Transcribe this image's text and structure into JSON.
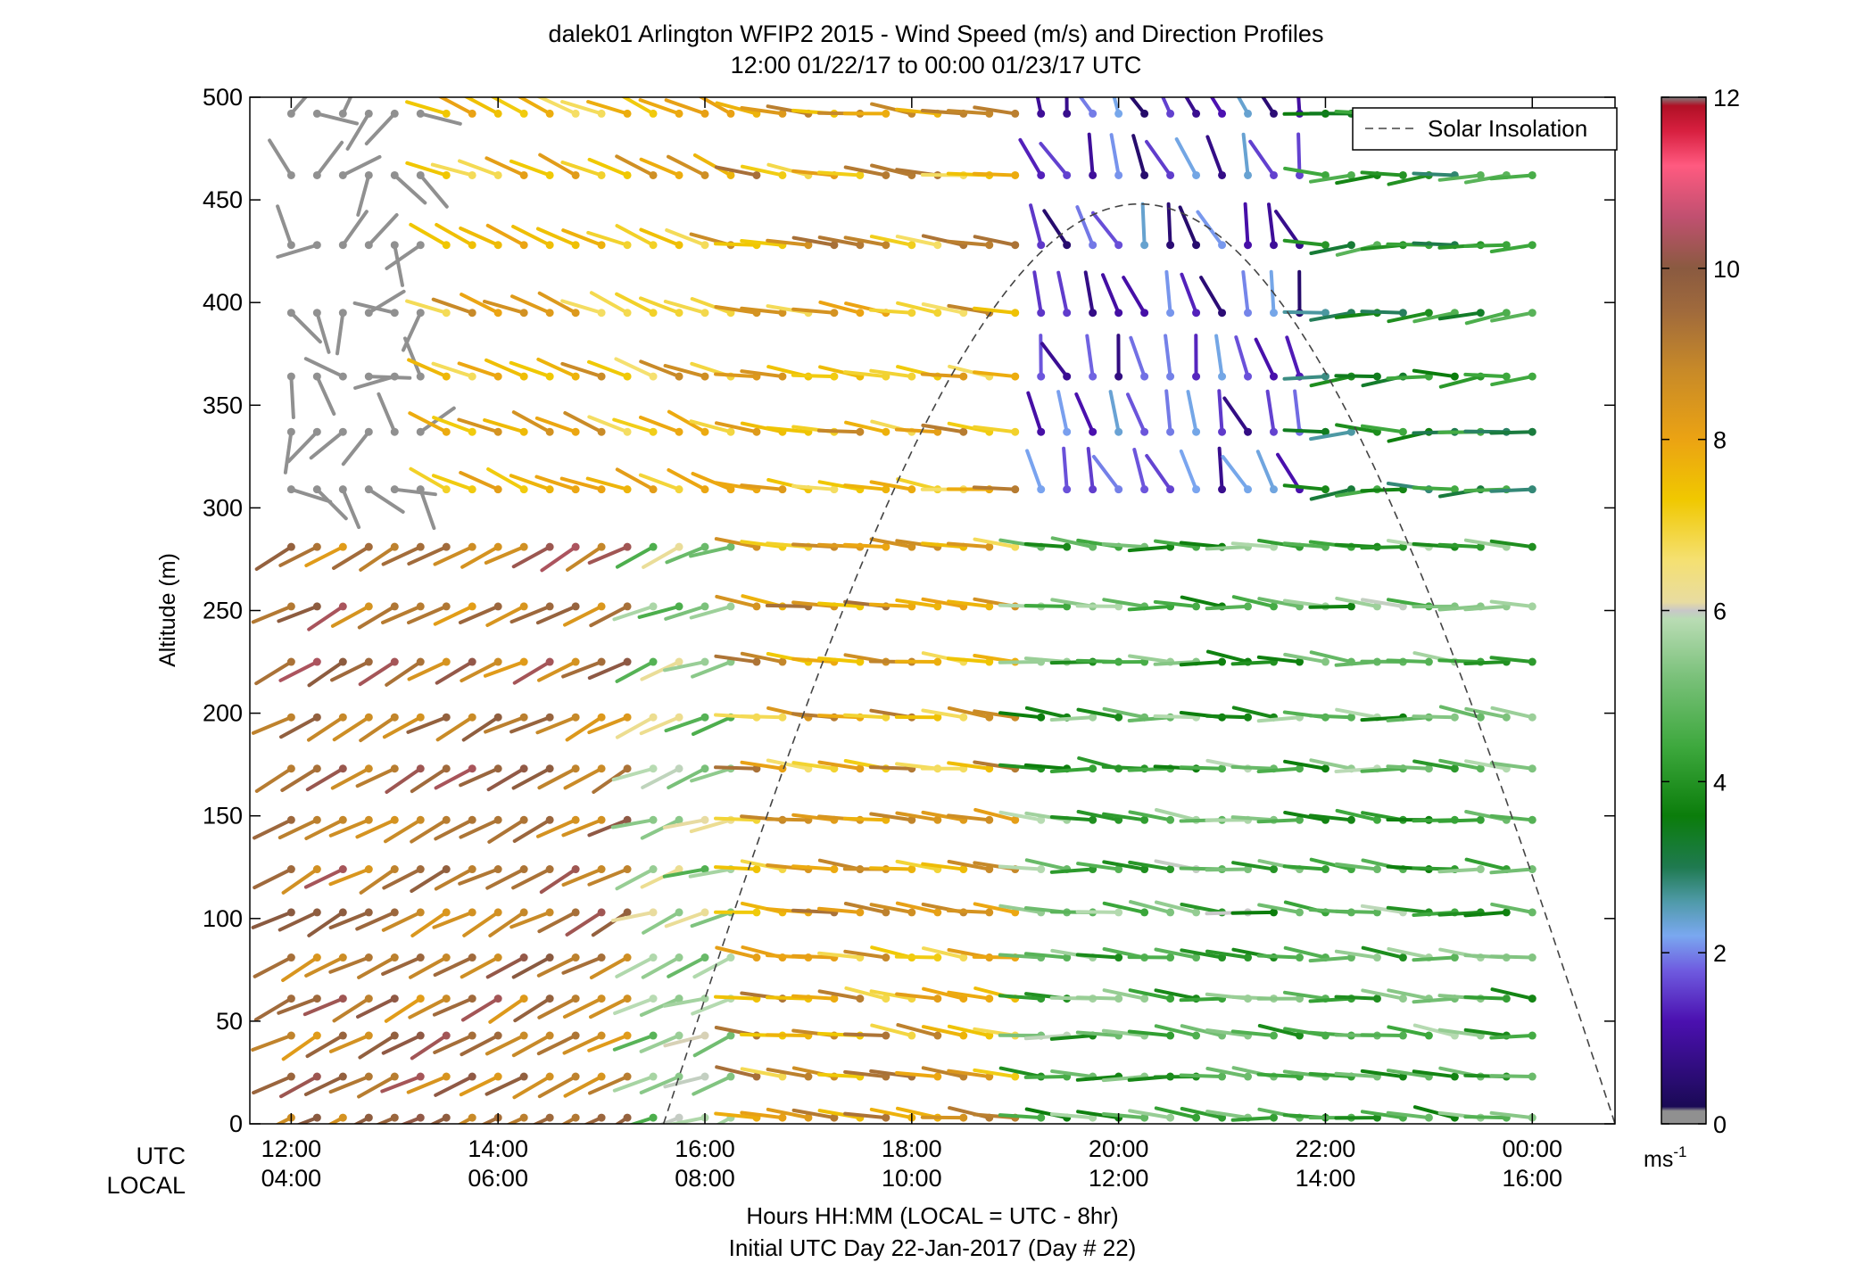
{
  "chart_data": {
    "type": "wind-barb-profile",
    "title": "dalek01 Arlington WFIP2 2015 - Wind Speed (m/s) and Direction Profiles",
    "subtitle": "12:00 01/22/17 to 00:00 01/23/17  UTC",
    "ylabel": "Altitude (m)",
    "xlabel": "Hours HH:MM  (LOCAL = UTC - 8hr)",
    "xlabel2": "Initial UTC Day 22-Jan-2017 (Day # 22)",
    "row_labels": {
      "utc": "UTC",
      "local": "LOCAL"
    },
    "xlim_hours_utc": [
      11.6,
      24.8
    ],
    "ylim": [
      0,
      500
    ],
    "yticks": [
      0,
      50,
      100,
      150,
      200,
      250,
      300,
      350,
      400,
      450,
      500
    ],
    "xticks_hours": [
      12,
      14,
      16,
      18,
      20,
      22,
      24
    ],
    "xtick_labels_utc": [
      "12:00",
      "14:00",
      "16:00",
      "18:00",
      "20:00",
      "22:00",
      "00:00"
    ],
    "xtick_labels_local": [
      "04:00",
      "06:00",
      "08:00",
      "10:00",
      "12:00",
      "14:00",
      "16:00"
    ],
    "legend": {
      "label": "Solar Insolation",
      "placement": "top-right"
    },
    "colorbar": {
      "unit_base": "ms",
      "unit_exp": "-1",
      "ticks": [
        0,
        2,
        4,
        6,
        8,
        10,
        12
      ],
      "range": [
        0,
        12
      ],
      "stops": [
        {
          "v": 0.0,
          "c": "#909090"
        },
        {
          "v": 0.15,
          "c": "#909090"
        },
        {
          "v": 0.2,
          "c": "#1a0a55"
        },
        {
          "v": 1.2,
          "c": "#4b10b0"
        },
        {
          "v": 1.8,
          "c": "#6f5ce0"
        },
        {
          "v": 2.2,
          "c": "#7aa8f0"
        },
        {
          "v": 2.6,
          "c": "#4f9aa8"
        },
        {
          "v": 3.0,
          "c": "#1f7a50"
        },
        {
          "v": 3.6,
          "c": "#0b7d0b"
        },
        {
          "v": 4.4,
          "c": "#3da83d"
        },
        {
          "v": 5.2,
          "c": "#78c078"
        },
        {
          "v": 5.9,
          "c": "#b9dcb4"
        },
        {
          "v": 6.0,
          "c": "#c8c8c8"
        },
        {
          "v": 6.1,
          "c": "#e8dca0"
        },
        {
          "v": 6.6,
          "c": "#f5e070"
        },
        {
          "v": 7.3,
          "c": "#f0c800"
        },
        {
          "v": 8.0,
          "c": "#eba313"
        },
        {
          "v": 8.8,
          "c": "#c88a28"
        },
        {
          "v": 9.5,
          "c": "#a06a3c"
        },
        {
          "v": 10.0,
          "c": "#8a5a40"
        },
        {
          "v": 10.6,
          "c": "#c05070"
        },
        {
          "v": 11.2,
          "c": "#ff5a80"
        },
        {
          "v": 11.6,
          "c": "#d82040"
        },
        {
          "v": 11.9,
          "c": "#b01025"
        },
        {
          "v": 12.0,
          "c": "#808080"
        }
      ]
    },
    "insolation_curve": {
      "start_hour": 15.6,
      "end_hour": 24.8,
      "peak_altitude_m": 448
    },
    "altitudes": [
      3,
      23,
      43,
      61,
      81,
      103,
      124,
      148,
      173,
      198,
      225,
      252,
      281,
      309,
      337,
      364,
      395,
      428,
      462,
      492
    ],
    "times_hours": [
      12.0,
      12.25,
      12.5,
      12.75,
      13.0,
      13.25,
      13.5,
      13.75,
      14.0,
      14.25,
      14.5,
      14.75,
      15.0,
      15.25,
      15.5,
      15.75,
      16.0,
      16.25,
      16.5,
      16.75,
      17.0,
      17.25,
      17.5,
      17.75,
      18.0,
      18.25,
      18.5,
      18.75,
      19.0,
      19.25,
      19.5,
      19.75,
      20.0,
      20.25,
      20.5,
      20.75,
      21.0,
      21.25,
      21.5,
      21.75,
      22.0,
      22.25,
      22.5,
      22.75,
      23.0,
      23.25,
      23.5,
      23.75,
      24.0
    ],
    "regimes": [
      {
        "t0": 12.0,
        "t1": 13.3,
        "z0": 300,
        "z1": 500,
        "speed": [
          0.0,
          0.1
        ],
        "dir": [
          20,
          350
        ]
      },
      {
        "t0": 12.0,
        "t1": 15.3,
        "z0": 0,
        "z1": 300,
        "speed": [
          8.2,
          10.4
        ],
        "dir": [
          235,
          250
        ]
      },
      {
        "t0": 13.3,
        "t1": 16.3,
        "z0": 300,
        "z1": 500,
        "speed": [
          6.6,
          8.8
        ],
        "dir": [
          285,
          300
        ]
      },
      {
        "t0": 15.3,
        "t1": 16.3,
        "z0": 0,
        "z1": 300,
        "speed": [
          4.6,
          6.3
        ],
        "dir": [
          240,
          260
        ]
      },
      {
        "t0": 16.3,
        "t1": 19.2,
        "z0": 0,
        "z1": 500,
        "speed": [
          6.6,
          9.4
        ],
        "dir": [
          270,
          285
        ]
      },
      {
        "t0": 19.2,
        "t1": 21.8,
        "z0": 300,
        "z1": 500,
        "speed": [
          0.4,
          2.4
        ],
        "dir": [
          320,
          360
        ]
      },
      {
        "t0": 19.2,
        "t1": 24.0,
        "z0": 0,
        "z1": 300,
        "speed": [
          3.6,
          6.0
        ],
        "dir": [
          265,
          285
        ]
      },
      {
        "t0": 21.8,
        "t1": 24.0,
        "z0": 300,
        "z1": 500,
        "speed": [
          2.6,
          4.8
        ],
        "dir": [
          255,
          280
        ]
      }
    ]
  }
}
